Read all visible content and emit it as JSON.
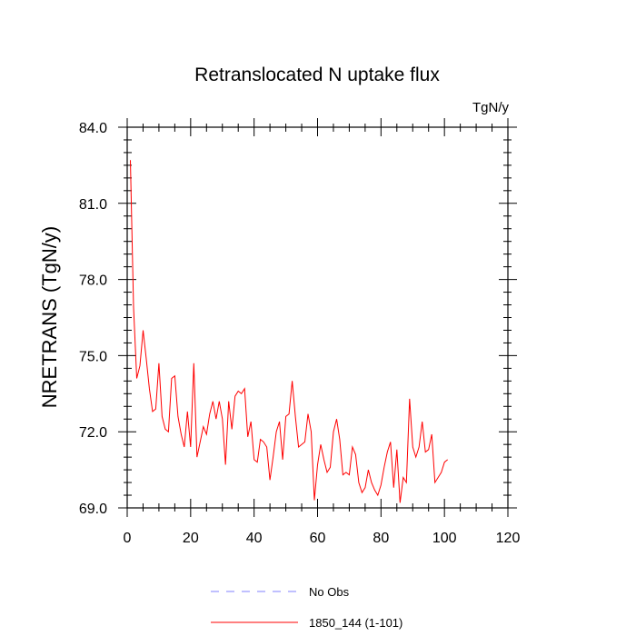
{
  "chart_data": {
    "type": "line",
    "title": "Retranslocated N uptake flux",
    "units": "TgN/y",
    "ylabel": "NRETRANS  (TgN/y)",
    "xlabel": "",
    "xlim": [
      0,
      120
    ],
    "ylim": [
      69.0,
      84.0
    ],
    "xticks": [
      0,
      20,
      40,
      60,
      80,
      100,
      120
    ],
    "xtick_labels": [
      "0",
      "20",
      "40",
      "60",
      "80",
      "100",
      "120"
    ],
    "yticks": [
      69.0,
      72.0,
      75.0,
      78.0,
      81.0,
      84.0
    ],
    "ytick_labels": [
      "69.0",
      "72.0",
      "75.0",
      "78.0",
      "81.0",
      "84.0"
    ],
    "x_minor_step": 5,
    "y_minor_step": 0.5,
    "colors": {
      "series": "#ff0000",
      "obs": "#8080ff",
      "axes": "#000000"
    },
    "series": [
      {
        "name": "1850_144 (1-101)",
        "x": [
          1,
          2,
          3,
          4,
          5,
          6,
          7,
          8,
          9,
          10,
          11,
          12,
          13,
          14,
          15,
          16,
          17,
          18,
          19,
          20,
          21,
          22,
          23,
          24,
          25,
          26,
          27,
          28,
          29,
          30,
          31,
          32,
          33,
          34,
          35,
          36,
          37,
          38,
          39,
          40,
          41,
          42,
          43,
          44,
          45,
          46,
          47,
          48,
          49,
          50,
          51,
          52,
          53,
          54,
          55,
          56,
          57,
          58,
          59,
          60,
          61,
          62,
          63,
          64,
          65,
          66,
          67,
          68,
          69,
          70,
          71,
          72,
          73,
          74,
          75,
          76,
          77,
          78,
          79,
          80,
          81,
          82,
          83,
          84,
          85,
          86,
          87,
          88,
          89,
          90,
          91,
          92,
          93,
          94,
          95,
          96,
          97,
          98,
          99,
          100,
          101
        ],
        "values": [
          82.7,
          76.9,
          74.1,
          74.6,
          76.0,
          74.9,
          73.7,
          72.8,
          72.9,
          74.7,
          72.6,
          72.1,
          72.0,
          74.1,
          74.2,
          72.6,
          71.9,
          71.4,
          72.8,
          71.4,
          74.7,
          71.0,
          71.6,
          72.2,
          71.9,
          72.7,
          73.2,
          72.5,
          73.2,
          72.5,
          70.7,
          73.2,
          72.1,
          73.4,
          73.6,
          73.5,
          73.7,
          71.8,
          72.4,
          70.9,
          70.8,
          71.7,
          71.6,
          71.4,
          70.1,
          71.0,
          72.0,
          72.4,
          70.9,
          72.6,
          72.7,
          74.0,
          72.6,
          71.4,
          71.5,
          71.6,
          72.7,
          72.0,
          69.3,
          70.7,
          71.5,
          70.9,
          70.4,
          70.6,
          72.0,
          72.5,
          71.7,
          70.3,
          70.4,
          70.3,
          71.4,
          71.1,
          70.0,
          69.6,
          69.8,
          70.5,
          70.0,
          69.7,
          69.5,
          69.9,
          70.6,
          71.2,
          71.6,
          69.8,
          71.3,
          69.2,
          70.2,
          70.0,
          73.3,
          71.4,
          71.0,
          71.4,
          72.4,
          71.2,
          71.3,
          71.9,
          70.0,
          70.2,
          70.4,
          70.8,
          70.9
        ]
      }
    ],
    "legend": [
      {
        "label": "No Obs",
        "style": "dashed",
        "color": "#8080ff"
      },
      {
        "label": "1850_144 (1-101)",
        "style": "solid",
        "color": "#ff0000"
      }
    ],
    "legend_position": "bottom-center"
  }
}
